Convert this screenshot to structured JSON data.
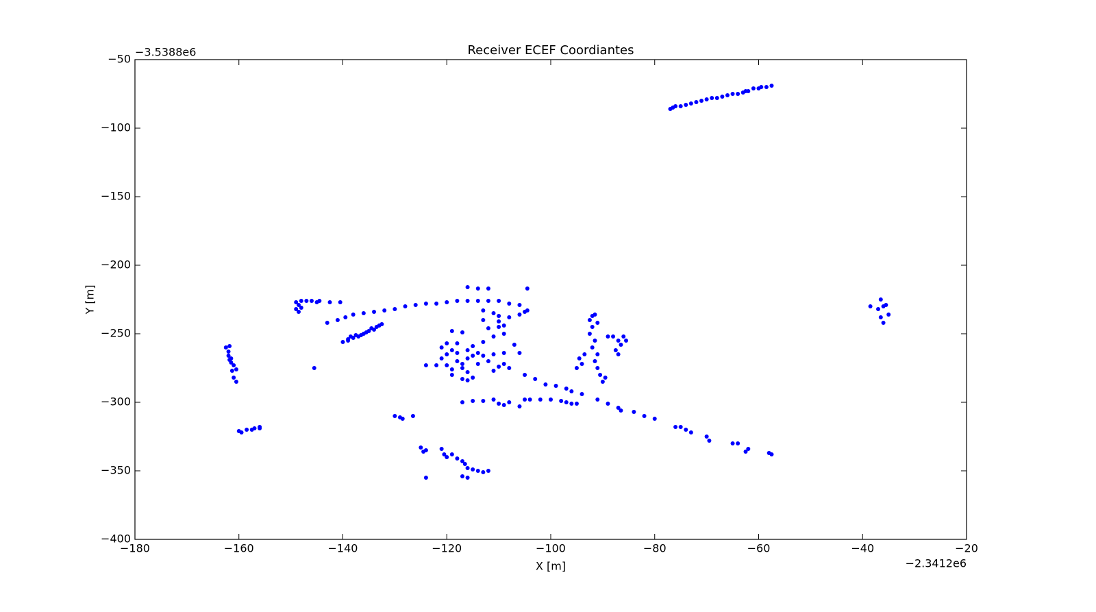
{
  "chart_data": {
    "type": "scatter",
    "title": "Receiver ECEF Coordiantes",
    "x_label": "X [m]",
    "y_label": "Y [m]",
    "x_offset_label": "−2.3412e6",
    "y_offset_label": "−3.5388e6",
    "color": "#0000ff",
    "xlim": [
      -180,
      -20
    ],
    "ylim": [
      -400,
      -50
    ],
    "xticks": [
      {
        "value": -180,
        "label": "−180"
      },
      {
        "value": -160,
        "label": "−160"
      },
      {
        "value": -140,
        "label": "−140"
      },
      {
        "value": -120,
        "label": "−120"
      },
      {
        "value": -100,
        "label": "−100"
      },
      {
        "value": -80,
        "label": "−80"
      },
      {
        "value": -60,
        "label": "−60"
      },
      {
        "value": -40,
        "label": "−40"
      },
      {
        "value": -20,
        "label": "−20"
      }
    ],
    "yticks": [
      {
        "value": -400,
        "label": "−400"
      },
      {
        "value": -350,
        "label": "−350"
      },
      {
        "value": -300,
        "label": "−300"
      },
      {
        "value": -250,
        "label": "−250"
      },
      {
        "value": -200,
        "label": "−200"
      },
      {
        "value": -150,
        "label": "−150"
      },
      {
        "value": -100,
        "label": "−100"
      },
      {
        "value": -50,
        "label": "−50"
      }
    ],
    "x": [
      -77,
      -76.5,
      -76,
      -75,
      -74,
      -73,
      -72,
      -71,
      -70,
      -69,
      -68,
      -67,
      -66,
      -65,
      -64,
      -63,
      -62.5,
      -62,
      -61,
      -60,
      -59.5,
      -58.5,
      -57.5,
      -162.5,
      -162,
      -162,
      -161.8,
      -161.5,
      -161.5,
      -161,
      -161.3,
      -161,
      -160.5,
      -160.5,
      -161.8,
      -160,
      -159.5,
      -158.5,
      -157.5,
      -157,
      -156,
      -156,
      -149,
      -148.5,
      -149,
      -148.5,
      -148,
      -147,
      -146,
      -145,
      -144.5,
      -148,
      -142.5,
      -140.5,
      -140,
      -139,
      -138,
      -137.5,
      -137,
      -136,
      -135.5,
      -135,
      -134,
      -133.5,
      -133,
      -132.5,
      -139,
      -136.5,
      -134.5,
      -138.5,
      -143,
      -141,
      -139.5,
      -138,
      -136,
      -134,
      -132,
      -130,
      -128,
      -126,
      -124,
      -122,
      -120,
      -118,
      -116,
      -114,
      -112,
      -110,
      -108,
      -106,
      -145.5,
      -113,
      -111,
      -110,
      -108,
      -106,
      -104.5,
      -105,
      -113,
      -110,
      -112,
      -110,
      -109,
      -104.5,
      -116,
      -114,
      -112,
      -122,
      -121,
      -120,
      -119,
      -118,
      -117,
      -116,
      -115,
      -114,
      -117,
      -119,
      -120,
      -118,
      -116,
      -115,
      -113,
      -111,
      -109,
      -114,
      -113,
      -111,
      -109,
      -110,
      -108,
      -121,
      -119,
      -117,
      -115,
      -116,
      -112,
      -118,
      -120,
      -107,
      -106,
      -124,
      -116,
      -119,
      -117,
      -111,
      -109,
      -117,
      -115,
      -113,
      -111,
      -110,
      -109,
      -108,
      -106,
      -105,
      -104,
      -102,
      -100,
      -98,
      -97,
      -96,
      -95,
      -105,
      -103,
      -101,
      -99,
      -97,
      -96,
      -94,
      -91,
      -89,
      -87,
      -86.5,
      -84,
      -82,
      -80,
      -76,
      -75,
      -74,
      -73,
      -70,
      -69.5,
      -65,
      -64,
      -62.5,
      -62,
      -58,
      -57.5,
      -92.5,
      -92,
      -91.5,
      -92,
      -91,
      -92.5,
      -91.5,
      -92,
      -91,
      -91.5,
      -91,
      -90.5,
      -90,
      -89.5,
      -94.5,
      -94,
      -95,
      -93.5,
      -88,
      -87,
      -86.5,
      -87.5,
      -86,
      -85.5,
      -87,
      -89,
      -125,
      -124.5,
      -124,
      -121,
      -120.5,
      -120,
      -119,
      -118,
      -117,
      -116.5,
      -116,
      -115,
      -114,
      -113,
      -112,
      -117,
      -116,
      -124,
      -130,
      -129,
      -128.5,
      -126.5,
      -38.5,
      -37,
      -36.5,
      -35.5,
      -36,
      -36.5,
      -36,
      -35
    ],
    "y": [
      -86,
      -85,
      -84,
      -84,
      -83,
      -82,
      -81,
      -80,
      -79,
      -78,
      -78,
      -77,
      -76,
      -75,
      -75,
      -74,
      -73,
      -73,
      -71,
      -71,
      -70,
      -70,
      -69,
      -260,
      -263,
      -266,
      -259,
      -268,
      -271,
      -273,
      -277,
      -282,
      -285,
      -276,
      -269,
      -321,
      -322,
      -320,
      -320,
      -319,
      -318,
      -319,
      -227,
      -229,
      -232,
      -234,
      -226,
      -226,
      -226,
      -227,
      -226,
      -231,
      -227,
      -227,
      -256,
      -254,
      -253,
      -251,
      -252,
      -250,
      -249,
      -248,
      -247,
      -245,
      -244,
      -243,
      -255,
      -251,
      -246,
      -252,
      -242,
      -240,
      -238,
      -236,
      -235,
      -234,
      -233,
      -232,
      -230,
      -229,
      -228,
      -228,
      -227,
      -226,
      -226,
      -226,
      -226,
      -226,
      -228,
      -229,
      -275,
      -233,
      -235,
      -237,
      -238,
      -236,
      -233,
      -234,
      -240,
      -241,
      -246,
      -245,
      -244,
      -217,
      -216,
      -217,
      -217,
      -273,
      -268,
      -265,
      -262,
      -270,
      -272,
      -268,
      -266,
      -264,
      -275,
      -276,
      -273,
      -264,
      -262,
      -259,
      -256,
      -252,
      -250,
      -272,
      -266,
      -265,
      -264,
      -274,
      -275,
      -260,
      -280,
      -283,
      -282,
      -278,
      -270,
      -257,
      -257,
      -258,
      -264,
      -273,
      -284,
      -248,
      -249,
      -277,
      -272,
      -300,
      -299,
      -299,
      -298,
      -301,
      -302,
      -300,
      -303,
      -298,
      -298,
      -298,
      -298,
      -299,
      -300,
      -301,
      -301,
      -280,
      -283,
      -287,
      -288,
      -290,
      -292,
      -294,
      -298,
      -301,
      -304,
      -306,
      -307,
      -310,
      -312,
      -318,
      -318,
      -320,
      -322,
      -325,
      -328,
      -330,
      -330,
      -336,
      -334,
      -337,
      -338,
      -240,
      -237,
      -236,
      -245,
      -242,
      -250,
      -255,
      -260,
      -265,
      -270,
      -275,
      -280,
      -285,
      -282,
      -268,
      -272,
      -275,
      -265,
      -252,
      -255,
      -258,
      -262,
      -252,
      -255,
      -265,
      -252,
      -333,
      -336,
      -335,
      -334,
      -338,
      -340,
      -338,
      -341,
      -343,
      -345,
      -348,
      -349,
      -350,
      -351,
      -350,
      -354,
      -355,
      -355,
      -310,
      -311,
      -312,
      -310,
      -230,
      -232,
      -225,
      -229,
      -230,
      -238,
      -242,
      -236
    ]
  }
}
